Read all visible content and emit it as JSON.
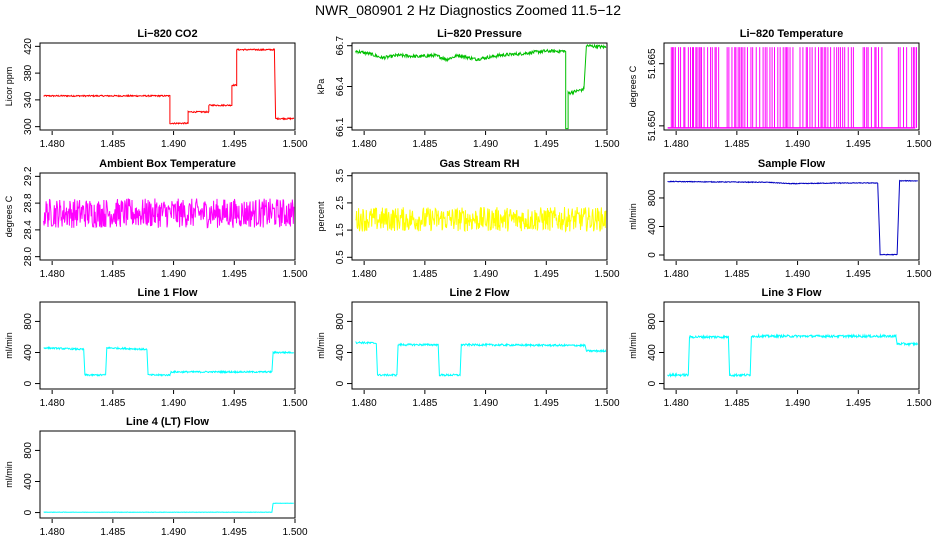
{
  "page": {
    "title": "NWR_080901  2 Hz Diagnostics Zoomed 11.5−12"
  },
  "chart_data": [
    {
      "type": "line",
      "title": "Li−820 CO2",
      "ylabel": "Licor ppm",
      "color": "#ff0000",
      "xlim": [
        1.479,
        1.5
      ],
      "ylim": [
        295,
        425
      ],
      "xticks": [
        "1.480",
        "1.485",
        "1.490",
        "1.495",
        "1.500"
      ],
      "yticks": [
        "300",
        "340",
        "380",
        "420"
      ],
      "noise": 1,
      "series": [
        {
          "points": [
            [
              1.4793,
              346
            ],
            [
              1.4897,
              346
            ],
            [
              1.4897,
              305
            ],
            [
              1.4912,
              305
            ],
            [
              1.4912,
              322
            ],
            [
              1.4929,
              322
            ],
            [
              1.4929,
              332
            ],
            [
              1.4948,
              332
            ],
            [
              1.4948,
              362
            ],
            [
              1.4952,
              362
            ],
            [
              1.4952,
              415
            ],
            [
              1.4983,
              415
            ],
            [
              1.4984,
              312
            ],
            [
              1.4999,
              312
            ]
          ]
        }
      ]
    },
    {
      "type": "line",
      "title": "Li−820 Pressure",
      "ylabel": "kPa",
      "color": "#00c000",
      "xlim": [
        1.479,
        1.5
      ],
      "ylim": [
        66.08,
        66.72
      ],
      "xticks": [
        "1.480",
        "1.485",
        "1.490",
        "1.495",
        "1.500"
      ],
      "yticks": [
        "66.1",
        "66.4",
        "66.7"
      ],
      "noise": 0.012,
      "series": [
        {
          "points": [
            [
              1.4793,
              66.66
            ],
            [
              1.4805,
              66.64
            ],
            [
              1.4815,
              66.61
            ],
            [
              1.4828,
              66.63
            ],
            [
              1.4845,
              66.62
            ],
            [
              1.4858,
              66.63
            ],
            [
              1.4868,
              66.6
            ],
            [
              1.4878,
              66.63
            ],
            [
              1.4892,
              66.6
            ],
            [
              1.4912,
              66.63
            ],
            [
              1.4928,
              66.64
            ],
            [
              1.4948,
              66.66
            ],
            [
              1.4966,
              66.66
            ],
            [
              1.4966,
              66.09
            ],
            [
              1.4968,
              66.09
            ],
            [
              1.4968,
              66.35
            ],
            [
              1.4981,
              66.38
            ],
            [
              1.4983,
              66.7
            ],
            [
              1.4999,
              66.69
            ]
          ]
        }
      ]
    },
    {
      "type": "bar",
      "title": "Li−820 Temperature",
      "ylabel": "degrees C",
      "color": "#ff00ff",
      "xlim": [
        1.479,
        1.5
      ],
      "ylim": [
        51.649,
        51.67
      ],
      "xticks": [
        "1.480",
        "1.485",
        "1.490",
        "1.495",
        "1.500"
      ],
      "yticks": [
        "51.650",
        "51.665"
      ],
      "base": 51.6495,
      "top": 51.669,
      "segments": [
        [
          1.4796,
          1.4836
        ],
        [
          1.4842,
          1.4897
        ],
        [
          1.4902,
          1.4946
        ],
        [
          1.4954,
          1.4972
        ],
        [
          1.4983,
          1.4992
        ],
        [
          1.4994,
          1.4998
        ]
      ]
    },
    {
      "type": "line",
      "title": "Ambient Box Temperature",
      "ylabel": "degrees C",
      "color": "#ff00ff",
      "xlim": [
        1.479,
        1.5
      ],
      "ylim": [
        27.95,
        29.25
      ],
      "xticks": [
        "1.480",
        "1.485",
        "1.490",
        "1.495",
        "1.500"
      ],
      "yticks": [
        "28.0",
        "28.4",
        "28.8",
        "29.2"
      ],
      "noise": 0.22,
      "series": [
        {
          "points": [
            [
              1.4793,
              28.65
            ],
            [
              1.4999,
              28.65
            ]
          ]
        }
      ]
    },
    {
      "type": "line",
      "title": "Gas Stream RH",
      "ylabel": "percent",
      "color": "#ffff00",
      "xlim": [
        1.479,
        1.5
      ],
      "ylim": [
        0.4,
        3.6
      ],
      "xticks": [
        "1.480",
        "1.485",
        "1.490",
        "1.495",
        "1.500"
      ],
      "yticks": [
        "0.5",
        "1.5",
        "2.5",
        "3.5"
      ],
      "noise": 0.45,
      "series": [
        {
          "points": [
            [
              1.4793,
              1.9
            ],
            [
              1.4999,
              1.9
            ]
          ]
        }
      ]
    },
    {
      "type": "line",
      "title": "Sample Flow",
      "ylabel": "ml/min",
      "color": "#0000c0",
      "xlim": [
        1.479,
        1.5
      ],
      "ylim": [
        -70,
        1150
      ],
      "xticks": [
        "1.480",
        "1.485",
        "1.490",
        "1.495",
        "1.500"
      ],
      "yticks": [
        "0",
        "400",
        "800"
      ],
      "noise": 5,
      "series": [
        {
          "points": [
            [
              1.4793,
              1030
            ],
            [
              1.4875,
              1020
            ],
            [
              1.4895,
              1000
            ],
            [
              1.4935,
              1010
            ],
            [
              1.4966,
              1010
            ],
            [
              1.4968,
              5
            ],
            [
              1.4982,
              5
            ],
            [
              1.4984,
              1040
            ],
            [
              1.4999,
              1040
            ]
          ]
        }
      ]
    },
    {
      "type": "line",
      "title": "Line 1 Flow",
      "ylabel": "ml/min",
      "color": "#00ffff",
      "xlim": [
        1.479,
        1.5
      ],
      "ylim": [
        -70,
        1050
      ],
      "xticks": [
        "1.480",
        "1.485",
        "1.490",
        "1.495",
        "1.500"
      ],
      "yticks": [
        "0",
        "400",
        "800"
      ],
      "noise": 10,
      "series": [
        {
          "points": [
            [
              1.4793,
              460
            ],
            [
              1.4826,
              440
            ],
            [
              1.4827,
              110
            ],
            [
              1.4844,
              110
            ],
            [
              1.4845,
              460
            ],
            [
              1.4878,
              440
            ],
            [
              1.4879,
              110
            ],
            [
              1.4897,
              110
            ],
            [
              1.4898,
              150
            ],
            [
              1.4981,
              150
            ],
            [
              1.4982,
              400
            ],
            [
              1.4999,
              400
            ]
          ]
        }
      ]
    },
    {
      "type": "line",
      "title": "Line 2 Flow",
      "ylabel": "ml/min",
      "color": "#00ffff",
      "xlim": [
        1.479,
        1.5
      ],
      "ylim": [
        -70,
        1050
      ],
      "xticks": [
        "1.480",
        "1.485",
        "1.490",
        "1.495",
        "1.500"
      ],
      "yticks": [
        "0",
        "400",
        "800"
      ],
      "noise": 12,
      "series": [
        {
          "points": [
            [
              1.4793,
              530
            ],
            [
              1.481,
              520
            ],
            [
              1.4811,
              110
            ],
            [
              1.4827,
              110
            ],
            [
              1.4828,
              500
            ],
            [
              1.4861,
              500
            ],
            [
              1.4862,
              110
            ],
            [
              1.4879,
              110
            ],
            [
              1.488,
              500
            ],
            [
              1.4982,
              490
            ],
            [
              1.4983,
              420
            ],
            [
              1.4999,
              420
            ]
          ]
        }
      ]
    },
    {
      "type": "line",
      "title": "Line 3 Flow",
      "ylabel": "ml/min",
      "color": "#00ffff",
      "xlim": [
        1.479,
        1.5
      ],
      "ylim": [
        -70,
        1050
      ],
      "xticks": [
        "1.480",
        "1.485",
        "1.490",
        "1.495",
        "1.500"
      ],
      "yticks": [
        "0",
        "400",
        "800"
      ],
      "noise": 15,
      "series": [
        {
          "points": [
            [
              1.4793,
              110
            ],
            [
              1.481,
              110
            ],
            [
              1.4811,
              600
            ],
            [
              1.4843,
              600
            ],
            [
              1.4844,
              110
            ],
            [
              1.4861,
              110
            ],
            [
              1.4862,
              610
            ],
            [
              1.4981,
              610
            ],
            [
              1.4982,
              510
            ],
            [
              1.4999,
              510
            ]
          ]
        }
      ]
    },
    {
      "type": "line",
      "title": "Line 4 (LT) Flow",
      "ylabel": "ml/min",
      "color": "#00ffff",
      "xlim": [
        1.479,
        1.5
      ],
      "ylim": [
        -70,
        1050
      ],
      "xticks": [
        "1.480",
        "1.485",
        "1.490",
        "1.495",
        "1.500"
      ],
      "yticks": [
        "0",
        "400",
        "800"
      ],
      "noise": 2,
      "series": [
        {
          "points": [
            [
              1.4793,
              5
            ],
            [
              1.4981,
              5
            ],
            [
              1.4982,
              120
            ],
            [
              1.4999,
              120
            ]
          ]
        }
      ]
    }
  ]
}
